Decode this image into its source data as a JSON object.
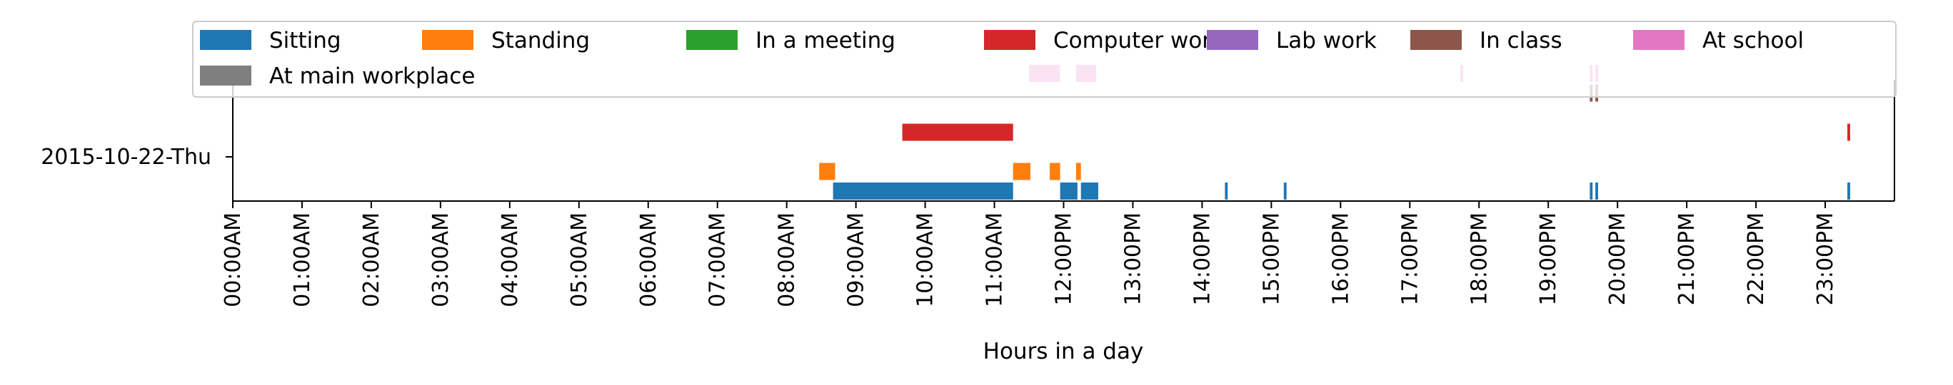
{
  "chart_data": {
    "type": "timeline",
    "xlabel": "Hours in a day",
    "ylabel": "",
    "title": "",
    "xlim": [
      0,
      24
    ],
    "x_ticks": [
      "00:00AM",
      "01:00AM",
      "02:00AM",
      "03:00AM",
      "04:00AM",
      "05:00AM",
      "06:00AM",
      "07:00AM",
      "08:00AM",
      "09:00AM",
      "10:00AM",
      "11:00AM",
      "12:00PM",
      "13:00PM",
      "14:00PM",
      "15:00PM",
      "16:00PM",
      "17:00PM",
      "18:00PM",
      "19:00PM",
      "20:00PM",
      "21:00PM",
      "22:00PM",
      "23:00PM"
    ],
    "y_categories": [
      "2015-10-22-Thu"
    ],
    "legend_position": "top",
    "series": [
      {
        "name": "Sitting",
        "color": "#1f77b4",
        "lane": 0,
        "intervals": [
          [
            8.67,
            11.27
          ],
          [
            11.95,
            12.2
          ],
          [
            12.25,
            12.5
          ],
          [
            14.33,
            14.37
          ],
          [
            15.18,
            15.22
          ],
          [
            19.6,
            19.64
          ],
          [
            19.68,
            19.72
          ],
          [
            23.32,
            23.36
          ]
        ]
      },
      {
        "name": "Standing",
        "color": "#ff7f0e",
        "lane": 0.5,
        "intervals": [
          [
            8.47,
            8.7
          ],
          [
            11.27,
            11.52
          ],
          [
            11.8,
            11.95
          ],
          [
            12.18,
            12.25
          ]
        ]
      },
      {
        "name": "In a meeting",
        "color": "#2ca02c",
        "lane": 1,
        "intervals": []
      },
      {
        "name": "Computer work",
        "color": "#d62728",
        "lane": 1.5,
        "intervals": [
          [
            9.67,
            11.27
          ],
          [
            23.32,
            23.36
          ]
        ]
      },
      {
        "name": "Lab work",
        "color": "#9467bd",
        "lane": 2,
        "intervals": []
      },
      {
        "name": "In class",
        "color": "#8c564b",
        "lane": 2.5,
        "intervals": [
          [
            19.6,
            19.64
          ],
          [
            19.68,
            19.72
          ]
        ]
      },
      {
        "name": "At school",
        "color": "#e377c2",
        "lane": 3,
        "intervals": [
          [
            11.5,
            11.95
          ],
          [
            12.18,
            12.47
          ],
          [
            17.73,
            17.77
          ],
          [
            19.6,
            19.64
          ],
          [
            19.68,
            19.72
          ]
        ]
      },
      {
        "name": "At main workplace",
        "color": "#7f7f7f",
        "lane": 3.5,
        "intervals": []
      }
    ]
  }
}
